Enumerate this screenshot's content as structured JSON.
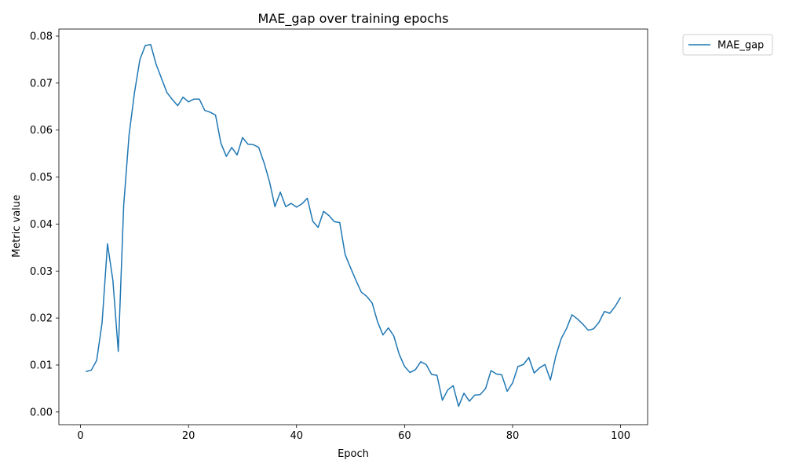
{
  "chart_data": {
    "type": "line",
    "title": "MAE_gap over training epochs",
    "xlabel": "Epoch",
    "ylabel": "Metric value",
    "xlim": [
      -4,
      105
    ],
    "ylim": [
      -0.0027,
      0.0815
    ],
    "x_ticks": [
      0,
      20,
      40,
      60,
      80,
      100
    ],
    "x_tick_labels": [
      "0",
      "20",
      "40",
      "60",
      "80",
      "100"
    ],
    "y_ticks": [
      0.0,
      0.01,
      0.02,
      0.03,
      0.04,
      0.05,
      0.06,
      0.07,
      0.08
    ],
    "y_tick_labels": [
      "0.00",
      "0.01",
      "0.02",
      "0.03",
      "0.04",
      "0.05",
      "0.06",
      "0.07",
      "0.08"
    ],
    "grid": false,
    "legend_position": "outside-top-right",
    "series": [
      {
        "name": "MAE_gap",
        "color": "#1f77b4",
        "x": [
          1,
          2,
          3,
          4,
          5,
          6,
          7,
          8,
          9,
          10,
          11,
          12,
          13,
          14,
          15,
          16,
          17,
          18,
          19,
          20,
          21,
          22,
          23,
          24,
          25,
          26,
          27,
          28,
          29,
          30,
          31,
          32,
          33,
          34,
          35,
          36,
          37,
          38,
          39,
          40,
          41,
          42,
          43,
          44,
          45,
          46,
          47,
          48,
          49,
          50,
          51,
          52,
          53,
          54,
          55,
          56,
          57,
          58,
          59,
          60,
          61,
          62,
          63,
          64,
          65,
          66,
          67,
          68,
          69,
          70,
          71,
          72,
          73,
          74,
          75,
          76,
          77,
          78,
          79,
          80,
          81,
          82,
          83,
          84,
          85,
          86,
          87,
          88,
          89,
          90,
          91,
          92,
          93,
          94,
          95,
          96,
          97,
          98,
          99,
          100
        ],
        "values": [
          0.0086,
          0.0089,
          0.011,
          0.019,
          0.0358,
          0.028,
          0.0129,
          0.044,
          0.059,
          0.068,
          0.075,
          0.078,
          0.0782,
          0.074,
          0.071,
          0.068,
          0.0665,
          0.0652,
          0.067,
          0.066,
          0.0666,
          0.0666,
          0.0642,
          0.0638,
          0.0632,
          0.0572,
          0.0544,
          0.0563,
          0.0547,
          0.0584,
          0.057,
          0.0569,
          0.0563,
          0.053,
          0.049,
          0.0437,
          0.0468,
          0.0437,
          0.0444,
          0.0436,
          0.0443,
          0.0455,
          0.0406,
          0.0393,
          0.0427,
          0.0418,
          0.0405,
          0.0403,
          0.0335,
          0.0307,
          0.028,
          0.0255,
          0.0246,
          0.0232,
          0.0192,
          0.0164,
          0.0179,
          0.0162,
          0.0123,
          0.0097,
          0.0084,
          0.009,
          0.0107,
          0.0101,
          0.008,
          0.0078,
          0.0025,
          0.0047,
          0.0056,
          0.0012,
          0.004,
          0.0023,
          0.0036,
          0.0037,
          0.005,
          0.0088,
          0.0081,
          0.0079,
          0.0044,
          0.0062,
          0.0097,
          0.0101,
          0.0116,
          0.0083,
          0.0094,
          0.0101,
          0.0068,
          0.0119,
          0.0156,
          0.0178,
          0.0207,
          0.0198,
          0.0187,
          0.0174,
          0.0177,
          0.0191,
          0.0214,
          0.021,
          0.0225,
          0.0244
        ]
      }
    ]
  }
}
